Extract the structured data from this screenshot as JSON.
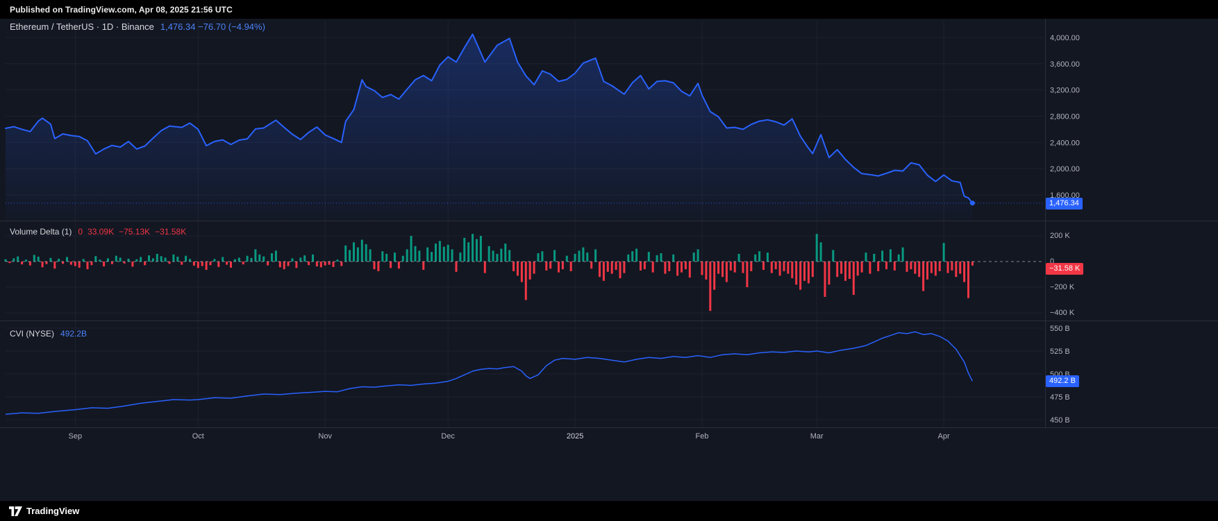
{
  "top_bar": {
    "text": "Published on TradingView.com, Apr 08, 2025 21:56 UTC"
  },
  "colors": {
    "background": "#131722",
    "accent_blue": "#2962FF",
    "legend_value_blue": "#4C82F7",
    "up_green": "#089981",
    "down_red": "#F23645",
    "axis_text": "#B2B5BE",
    "grid": "#1E222D",
    "separator": "#2A2E39"
  },
  "main_legend": {
    "title": "Ethereum / TetherUS · 1D · Binance",
    "values": "1,476.34 −76.70 (−4.94%)"
  },
  "volume_legend": {
    "title": "Volume Delta (1)",
    "v0": "0",
    "v1": "33.09K",
    "v2": "−75.13K",
    "v3": "−31.58K"
  },
  "cvi_legend": {
    "title": "CVI (NYSE)",
    "value": "492.2B"
  },
  "badges": {
    "price": "1,476.34",
    "volume": "−31.58 K",
    "cvi": "492.2 B"
  },
  "x_axis": {
    "start_date": "2024-08-15",
    "end_date": "2025-04-08",
    "ticks": [
      {
        "label": "Sep",
        "day": 17
      },
      {
        "label": "Oct",
        "day": 47
      },
      {
        "label": "Nov",
        "day": 78
      },
      {
        "label": "Dec",
        "day": 108
      },
      {
        "label": "2025",
        "day": 139,
        "major": true
      },
      {
        "label": "Feb",
        "day": 170
      },
      {
        "label": "Mar",
        "day": 198
      },
      {
        "label": "Apr",
        "day": 229
      }
    ]
  },
  "footer": {
    "brand": "TradingView"
  },
  "chart_data": [
    {
      "type": "area",
      "panel": "price",
      "title": "Ethereum / TetherUS · 1D · Binance",
      "symbol": "ETHUSDT",
      "timeframe": "1D",
      "x_unit": "days since 2024-08-15",
      "line_color": "#2962FF",
      "last_value": 1476.34,
      "change": -76.7,
      "change_pct": -4.94,
      "ylim_visible": [
        1600,
        4000
      ],
      "yticks": [
        {
          "v": 4000,
          "label": "4,000.00"
        },
        {
          "v": 3600,
          "label": "3,600.00"
        },
        {
          "v": 3200,
          "label": "3,200.00"
        },
        {
          "v": 2800,
          "label": "2,800.00"
        },
        {
          "v": 2400,
          "label": "2,400.00"
        },
        {
          "v": 2000,
          "label": "2,000.00"
        },
        {
          "v": 1600,
          "label": "1,600.00"
        }
      ],
      "points": [
        [
          0,
          2615
        ],
        [
          2,
          2640
        ],
        [
          4,
          2600
        ],
        [
          6,
          2565
        ],
        [
          8,
          2725
        ],
        [
          9,
          2770
        ],
        [
          11,
          2680
        ],
        [
          12,
          2460
        ],
        [
          14,
          2530
        ],
        [
          16,
          2505
        ],
        [
          18,
          2490
        ],
        [
          20,
          2425
        ],
        [
          22,
          2225
        ],
        [
          24,
          2300
        ],
        [
          26,
          2355
        ],
        [
          28,
          2330
        ],
        [
          30,
          2415
        ],
        [
          32,
          2300
        ],
        [
          34,
          2345
        ],
        [
          36,
          2465
        ],
        [
          38,
          2580
        ],
        [
          40,
          2650
        ],
        [
          43,
          2630
        ],
        [
          45,
          2695
        ],
        [
          47,
          2600
        ],
        [
          49,
          2350
        ],
        [
          51,
          2415
        ],
        [
          53,
          2440
        ],
        [
          55,
          2370
        ],
        [
          57,
          2435
        ],
        [
          59,
          2455
        ],
        [
          61,
          2605
        ],
        [
          63,
          2620
        ],
        [
          66,
          2740
        ],
        [
          68,
          2630
        ],
        [
          70,
          2525
        ],
        [
          72,
          2445
        ],
        [
          74,
          2555
        ],
        [
          76,
          2635
        ],
        [
          78,
          2515
        ],
        [
          80,
          2460
        ],
        [
          82,
          2400
        ],
        [
          83,
          2720
        ],
        [
          85,
          2900
        ],
        [
          87,
          3355
        ],
        [
          88,
          3250
        ],
        [
          90,
          3190
        ],
        [
          92,
          3085
        ],
        [
          94,
          3130
        ],
        [
          96,
          3060
        ],
        [
          98,
          3210
        ],
        [
          100,
          3355
        ],
        [
          102,
          3420
        ],
        [
          104,
          3340
        ],
        [
          106,
          3580
        ],
        [
          108,
          3705
        ],
        [
          110,
          3625
        ],
        [
          112,
          3845
        ],
        [
          114,
          4050
        ],
        [
          117,
          3625
        ],
        [
          120,
          3880
        ],
        [
          123,
          3985
        ],
        [
          125,
          3620
        ],
        [
          127,
          3415
        ],
        [
          129,
          3280
        ],
        [
          131,
          3490
        ],
        [
          133,
          3440
        ],
        [
          135,
          3330
        ],
        [
          137,
          3360
        ],
        [
          139,
          3455
        ],
        [
          141,
          3610
        ],
        [
          144,
          3685
        ],
        [
          146,
          3330
        ],
        [
          148,
          3265
        ],
        [
          151,
          3135
        ],
        [
          153,
          3310
        ],
        [
          155,
          3420
        ],
        [
          157,
          3215
        ],
        [
          159,
          3330
        ],
        [
          161,
          3340
        ],
        [
          163,
          3310
        ],
        [
          165,
          3180
        ],
        [
          167,
          3110
        ],
        [
          169,
          3300
        ],
        [
          170,
          3120
        ],
        [
          172,
          2870
        ],
        [
          174,
          2790
        ],
        [
          176,
          2620
        ],
        [
          178,
          2630
        ],
        [
          180,
          2600
        ],
        [
          182,
          2675
        ],
        [
          184,
          2725
        ],
        [
          186,
          2745
        ],
        [
          188,
          2715
        ],
        [
          190,
          2665
        ],
        [
          192,
          2760
        ],
        [
          194,
          2495
        ],
        [
          196,
          2310
        ],
        [
          197,
          2230
        ],
        [
          199,
          2520
        ],
        [
          201,
          2170
        ],
        [
          203,
          2290
        ],
        [
          205,
          2140
        ],
        [
          207,
          2020
        ],
        [
          209,
          1925
        ],
        [
          211,
          1910
        ],
        [
          213,
          1890
        ],
        [
          215,
          1930
        ],
        [
          217,
          1975
        ],
        [
          219,
          1965
        ],
        [
          221,
          2090
        ],
        [
          223,
          2060
        ],
        [
          225,
          1900
        ],
        [
          227,
          1805
        ],
        [
          229,
          1905
        ],
        [
          231,
          1815
        ],
        [
          233,
          1790
        ],
        [
          234,
          1580
        ],
        [
          235,
          1555
        ],
        [
          236,
          1476.34
        ]
      ]
    },
    {
      "type": "bar",
      "panel": "volume_delta",
      "title": "Volume Delta (1)",
      "unit": "K",
      "last_value": -31.58,
      "open": 0,
      "max": 33.09,
      "min": -75.13,
      "close": -31.58,
      "yticks": [
        {
          "v": 200,
          "label": "200 K"
        },
        {
          "v": 0,
          "label": "0"
        },
        {
          "v": -200,
          "label": "−200 K"
        },
        {
          "v": -400,
          "label": "−400 K"
        }
      ],
      "values": [
        18,
        -12,
        25,
        40,
        -22,
        15,
        -30,
        52,
        38,
        -45,
        -20,
        28,
        -55,
        22,
        -18,
        35,
        -25,
        -35,
        -48,
        20,
        -60,
        -28,
        42,
        15,
        -38,
        25,
        -20,
        45,
        30,
        -15,
        22,
        -40,
        18,
        35,
        -28,
        48,
        25,
        60,
        42,
        30,
        -18,
        55,
        38,
        -25,
        45,
        20,
        -32,
        -50,
        -35,
        -65,
        -28,
        20,
        -42,
        35,
        -25,
        -48,
        18,
        30,
        -22,
        45,
        28,
        95,
        55,
        40,
        -30,
        65,
        85,
        -45,
        -60,
        -35,
        25,
        -50,
        30,
        48,
        -28,
        55,
        -38,
        -45,
        -30,
        -25,
        -42,
        15,
        -35,
        125,
        90,
        150,
        110,
        170,
        135,
        95,
        -60,
        -75,
        80,
        60,
        -50,
        70,
        -55,
        45,
        95,
        200,
        120,
        85,
        -65,
        110,
        75,
        140,
        160,
        115,
        130,
        95,
        -80,
        70,
        185,
        150,
        215,
        175,
        200,
        -90,
        120,
        85,
        60,
        100,
        140,
        90,
        -75,
        -110,
        -160,
        -300,
        -140,
        -95,
        65,
        80,
        -70,
        -55,
        90,
        -85,
        -60,
        45,
        -75,
        60,
        85,
        110,
        70,
        -55,
        95,
        -120,
        -150,
        -80,
        -95,
        -65,
        -130,
        -90,
        55,
        80,
        100,
        -70,
        -60,
        75,
        -85,
        50,
        65,
        -95,
        -75,
        55,
        -110,
        -85,
        -60,
        -125,
        70,
        95,
        -105,
        -140,
        -385,
        -220,
        -95,
        -120,
        -160,
        -70,
        -85,
        60,
        -90,
        -200,
        -75,
        55,
        80,
        -65,
        70,
        -90,
        -60,
        -110,
        -75,
        -95,
        -130,
        -180,
        -220,
        -150,
        -170,
        -120,
        215,
        150,
        -275,
        -180,
        90,
        -120,
        -95,
        -150,
        -135,
        -260,
        -110,
        -85,
        70,
        -95,
        60,
        -75,
        85,
        -60,
        95,
        -70,
        55,
        110,
        -80,
        -60,
        -95,
        -120,
        -230,
        -140,
        -90,
        -110,
        -75,
        145,
        -90,
        -70,
        -120,
        -95,
        -160,
        -285,
        -31.58
      ]
    },
    {
      "type": "line",
      "panel": "cvi",
      "title": "CVI (NYSE)",
      "unit": "B",
      "line_color": "#2962FF",
      "last_value": 492.2,
      "yticks": [
        {
          "v": 550,
          "label": "550 B"
        },
        {
          "v": 525,
          "label": "525 B"
        },
        {
          "v": 500,
          "label": "500 B"
        },
        {
          "v": 475,
          "label": "475 B"
        },
        {
          "v": 450,
          "label": "450 B"
        }
      ],
      "points": [
        [
          0,
          456
        ],
        [
          4,
          457.5
        ],
        [
          8,
          457
        ],
        [
          12,
          459
        ],
        [
          17,
          461
        ],
        [
          21,
          463
        ],
        [
          25,
          462.5
        ],
        [
          29,
          465
        ],
        [
          33,
          468
        ],
        [
          37,
          470
        ],
        [
          41,
          472
        ],
        [
          45,
          471.5
        ],
        [
          47,
          472
        ],
        [
          51,
          474
        ],
        [
          55,
          473.5
        ],
        [
          59,
          476
        ],
        [
          63,
          478
        ],
        [
          67,
          477.5
        ],
        [
          71,
          479
        ],
        [
          75,
          480
        ],
        [
          78,
          481
        ],
        [
          81,
          480.5
        ],
        [
          84,
          484
        ],
        [
          87,
          486
        ],
        [
          90,
          485.5
        ],
        [
          93,
          487
        ],
        [
          96,
          488
        ],
        [
          99,
          487.5
        ],
        [
          102,
          489
        ],
        [
          105,
          490
        ],
        [
          108,
          492
        ],
        [
          110,
          495
        ],
        [
          112,
          499
        ],
        [
          114,
          503
        ],
        [
          116,
          505
        ],
        [
          118,
          506
        ],
        [
          120,
          505.5
        ],
        [
          122,
          507
        ],
        [
          124,
          508
        ],
        [
          126,
          503
        ],
        [
          127,
          498
        ],
        [
          128,
          495
        ],
        [
          130,
          499
        ],
        [
          132,
          509
        ],
        [
          134,
          515
        ],
        [
          136,
          517
        ],
        [
          139,
          516
        ],
        [
          142,
          518
        ],
        [
          145,
          517
        ],
        [
          148,
          515
        ],
        [
          151,
          513
        ],
        [
          154,
          516
        ],
        [
          157,
          518
        ],
        [
          160,
          517
        ],
        [
          163,
          519
        ],
        [
          166,
          518
        ],
        [
          169,
          520
        ],
        [
          172,
          518
        ],
        [
          175,
          521
        ],
        [
          178,
          522
        ],
        [
          181,
          521
        ],
        [
          184,
          523
        ],
        [
          187,
          524
        ],
        [
          190,
          523.5
        ],
        [
          193,
          525
        ],
        [
          196,
          524
        ],
        [
          198,
          525
        ],
        [
          201,
          523
        ],
        [
          204,
          526
        ],
        [
          207,
          528
        ],
        [
          210,
          531
        ],
        [
          212,
          535
        ],
        [
          214,
          539
        ],
        [
          216,
          542
        ],
        [
          218,
          545
        ],
        [
          220,
          544
        ],
        [
          222,
          546
        ],
        [
          224,
          543
        ],
        [
          226,
          544
        ],
        [
          228,
          541
        ],
        [
          230,
          536
        ],
        [
          232,
          527
        ],
        [
          234,
          513
        ],
        [
          235,
          501
        ],
        [
          236,
          492.2
        ]
      ]
    }
  ]
}
